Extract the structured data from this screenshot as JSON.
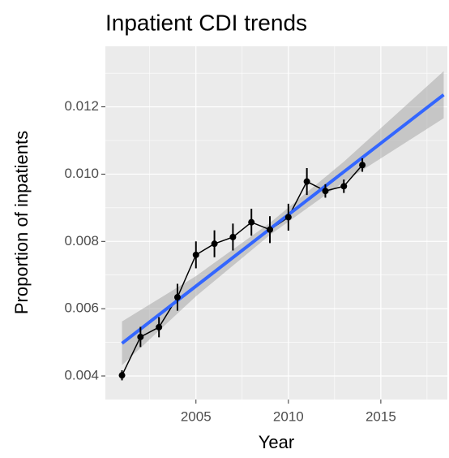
{
  "chart_data": {
    "type": "line",
    "title": "Inpatient CDI trends",
    "x_label": "Year",
    "y_label": "Proportion of inpatients",
    "x": [
      2001,
      2002,
      2003,
      2004,
      2005,
      2006,
      2007,
      2008,
      2009,
      2010,
      2011,
      2012,
      2013,
      2014
    ],
    "series": [
      {
        "color": "#000000",
        "values": [
          0.00402,
          0.00516,
          0.00545,
          0.00634,
          0.0076,
          0.00793,
          0.00813,
          0.00857,
          0.00835,
          0.00872,
          0.00978,
          0.0095,
          0.00964,
          0.01027
        ],
        "errors": [
          0.00015,
          0.0003,
          0.0003,
          0.0004,
          0.0004,
          0.0004,
          0.0004,
          0.0004,
          0.0004,
          0.0004,
          0.0004,
          0.0002,
          0.0002,
          0.0002
        ]
      }
    ],
    "trend": {
      "color": "#3366ff",
      "ribbon_color": "#999999",
      "x": [
        2001,
        2005,
        2009,
        2013,
        2018.4
      ],
      "values": [
        0.00497,
        0.00667,
        0.00837,
        0.01007,
        0.01236
      ],
      "lower": [
        0.00432,
        0.00637,
        0.00819,
        0.00977,
        0.01166
      ],
      "upper": [
        0.00562,
        0.00697,
        0.00855,
        0.01037,
        0.01306
      ]
    },
    "xlim": [
      2000.1,
      2018.6
    ],
    "ylim": [
      0.0033,
      0.0138
    ],
    "xticks": [
      2005,
      2010,
      2015
    ],
    "yticks": [
      0.004,
      0.006,
      0.008,
      {
        "value": 0.01,
        "label": "0.010"
      },
      0.012
    ],
    "grid": true
  }
}
